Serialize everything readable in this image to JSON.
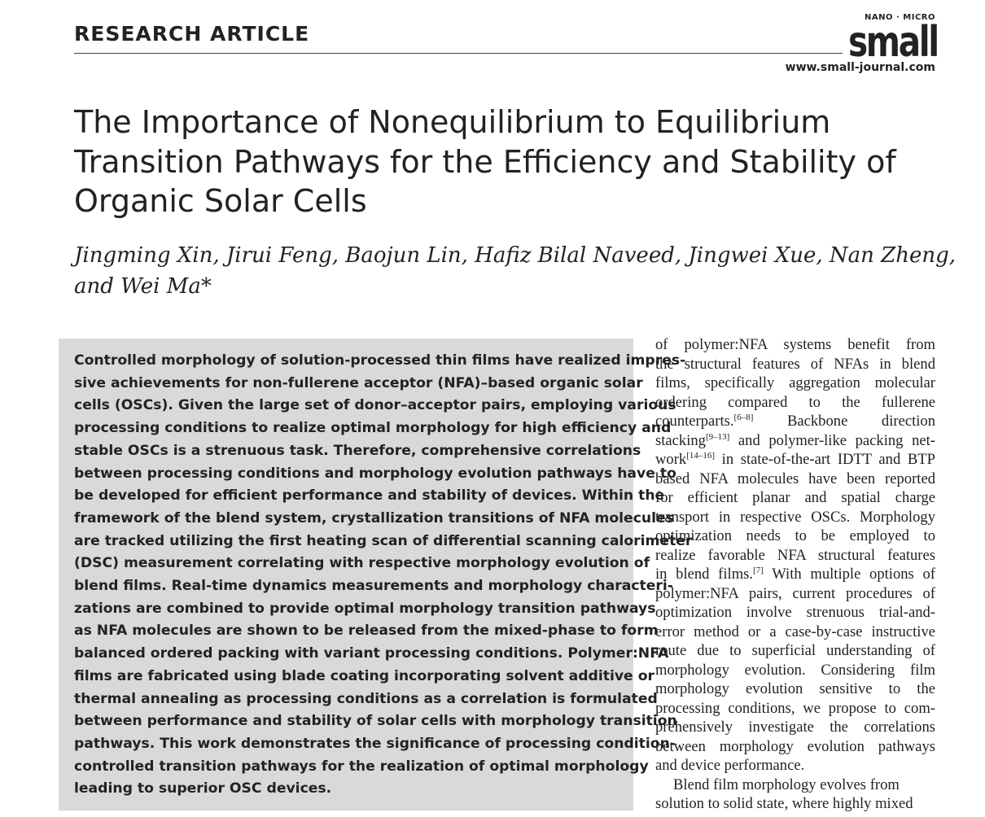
{
  "header": {
    "section": "RESEARCH ARTICLE",
    "logo_top": "NANO · MICRO",
    "logo_main": "small",
    "url": "www.small-journal.com"
  },
  "title": {
    "lines": [
      "The Importance of Nonequilibrium to Equilibrium",
      "Transition Pathways for the Efficiency and Stability of",
      "Organic Solar Cells"
    ]
  },
  "authors": {
    "lines": [
      "Jingming Xin, Jirui Feng, Baojun Lin, Hafiz Bilal Naveed, Jingwei Xue, Nan Zheng,",
      "and Wei Ma*"
    ]
  },
  "abstract": {
    "lines": [
      "Controlled morphology of solution-processed thin films have realized impres-",
      "sive achievements for non-fullerene acceptor (NFA)–based organic solar",
      "cells (OSCs). Given the large set of donor–acceptor pairs, employing various",
      "processing conditions to realize optimal morphology for high efficiency and",
      "stable OSCs is a strenuous task. Therefore, comprehensive correlations",
      "between processing conditions and morphology evolution pathways have to",
      "be developed for efficient performance and stability of devices. Within the",
      "framework of the blend system, crystallization transitions of NFA molecules",
      "are tracked utilizing the first heating scan of differential scanning calorimeter",
      "(DSC) measurement correlating with respective morphology evolution of",
      "blend films. Real-time dynamics measurements and morphology characteri-",
      "zations are combined to provide optimal morphology transition pathways",
      "as NFA molecules are shown to be released from the mixed-phase to form",
      "balanced ordered packing with variant processing conditions. Polymer:NFA",
      "films are fabricated using blade coating incorporating solvent additive or",
      "thermal annealing as processing conditions as a correlation is formulated",
      "between performance and stability of solar cells with morphology transition",
      "pathways. This work demonstrates the significance of processing condition-",
      "controlled transition pathways for the realization of optimal morphology",
      "leading to superior OSC devices."
    ]
  },
  "body": {
    "lines": [
      [
        "of polymer:NFA systems benefit from"
      ],
      [
        "the structural features of NFAs in blend"
      ],
      [
        "films, specifically aggregation molecular"
      ],
      [
        "ordering compared to the fullerene"
      ],
      [
        "counterparts.",
        {
          "sup": "[6–8]"
        },
        " Backbone direction"
      ],
      [
        "stacking",
        {
          "sup": "[9–13]"
        },
        " and polymer-like packing net-"
      ],
      [
        "work",
        {
          "sup": "[14–16]"
        },
        " in state-of-the-art IDTT and BTP"
      ],
      [
        "based NFA molecules have been reported"
      ],
      [
        "for efficient planar and spatial charge"
      ],
      [
        "transport in respective OSCs. Morphology"
      ],
      [
        "optimization needs to be employed to"
      ],
      [
        "realize favorable NFA structural features"
      ],
      [
        "in blend films.",
        {
          "sup": "[7]"
        },
        " With multiple options of"
      ],
      [
        "polymer:NFA pairs, current procedures of"
      ],
      [
        "optimization involve strenuous trial-and-"
      ],
      [
        "error method or a case-by-case instructive"
      ],
      [
        "route due to superficial understanding of"
      ],
      [
        "morphology evolution. Considering film"
      ],
      [
        "morphology evolution sensitive to the"
      ],
      [
        "processing conditions, we propose to com-"
      ],
      [
        "prehensively investigate the correlations"
      ],
      [
        "between morphology evolution pathways"
      ],
      [
        "and device performance."
      ],
      [
        "Blend film morphology evolves from"
      ],
      [
        "solution to solid state, where highly mixed"
      ]
    ]
  }
}
